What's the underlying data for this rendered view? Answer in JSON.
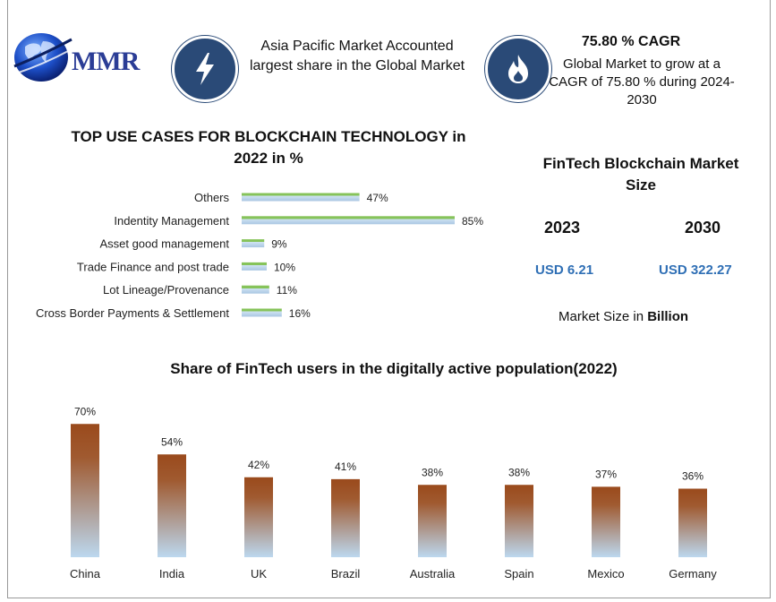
{
  "logo": {
    "text": "MMR"
  },
  "header": {
    "region_text": "Asia Pacific Market Accounted largest share in the Global Market",
    "cagr_title": "75.80 % CAGR",
    "cagr_text": "Global Market to grow at a CAGR of 75.80 % during 2024-2030"
  },
  "market_size": {
    "title": "FinTech Blockchain Market Size",
    "year1": "2023",
    "year2": "2030",
    "value1": "USD 6.21",
    "value2": "USD 322.27",
    "unit_prefix": "Market Size in",
    "unit_bold": "Billion"
  },
  "colors": {
    "hbar_green": "#86c35a",
    "hbar_blue": "#b5cde4",
    "vbar_top": "#9a4a1c",
    "vbar_bottom": "#bcd8ef",
    "icon_circle": "#2a4a77"
  },
  "icons": [
    "globe-icon",
    "lightning-bolt-icon",
    "flame-icon"
  ],
  "chart_data": [
    {
      "type": "bar",
      "orientation": "horizontal",
      "title": "TOP USE CASES FOR BLOCKCHAIN TECHNOLOGY in 2022 in %",
      "categories": [
        "Others",
        "Indentity Management",
        "Asset good management",
        "Trade Finance and post trade",
        "Lot Lineage/Provenance",
        "Cross Border Payments & Settlement"
      ],
      "values": [
        47,
        85,
        9,
        10,
        11,
        16
      ],
      "labels": [
        "47%",
        "85%",
        "9%",
        "10%",
        "11%",
        "16%"
      ],
      "xlim": [
        0,
        100
      ],
      "grid": false,
      "legend": "none"
    },
    {
      "type": "bar",
      "orientation": "vertical",
      "title": "Share of FinTech users in the digitally active population(2022)",
      "categories": [
        "China",
        "India",
        "UK",
        "Brazil",
        "Australia",
        "Spain",
        "Mexico",
        "Germany"
      ],
      "values": [
        70,
        54,
        42,
        41,
        38,
        38,
        37,
        36
      ],
      "labels": [
        "70%",
        "54%",
        "42%",
        "41%",
        "38%",
        "38%",
        "37%",
        "36%"
      ],
      "ylim": [
        0,
        80
      ],
      "grid": false,
      "legend": "none"
    }
  ]
}
